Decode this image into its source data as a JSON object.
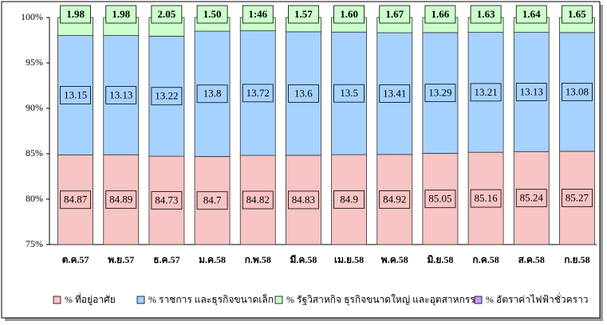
{
  "chart_data": {
    "type": "stacked_bar",
    "categories": [
      "ต.ค.57",
      "พ.ย.57",
      "ธ.ค.57",
      "ม.ค.58",
      "ก.พ.58",
      "มี.ค.58",
      "เม.ย.58",
      "พ.ค.58",
      "มิ.ย.58",
      "ก.ค.58",
      "ส.ค.58",
      "ก.ย.58"
    ],
    "series": [
      {
        "name": "% ที่อยู่อาศัย",
        "color": "#f8c4c4",
        "values": [
          84.87,
          84.89,
          84.73,
          84.7,
          84.82,
          84.83,
          84.9,
          84.92,
          85.05,
          85.16,
          85.24,
          85.27
        ]
      },
      {
        "name": "% ราชการ และธุรกิจขนาดเล็ก",
        "color": "#a6d2ff",
        "values": [
          13.15,
          13.13,
          13.22,
          13.8,
          13.72,
          13.6,
          13.5,
          13.41,
          13.29,
          13.21,
          13.13,
          13.08
        ]
      },
      {
        "name": "% รัฐวิสาหกิจ ธุรกิจขนาดใหญ่ และอุตสาหกรรม",
        "color": "#ccffcc",
        "values": [
          1.98,
          1.98,
          2.05,
          1.5,
          1.46,
          1.57,
          1.6,
          1.67,
          1.66,
          1.63,
          1.64,
          1.65
        ],
        "value_labels": [
          "1.98",
          "1.98",
          "2.05",
          "1.50",
          "1:46",
          "1.57",
          "1.60",
          "1.67",
          "1.66",
          "1.63",
          "1.64",
          "1.65"
        ]
      },
      {
        "name": "% อัตราค่าไฟฟ้าชั่วคราว",
        "color": "#cc99ff",
        "values": [
          null,
          null,
          null,
          null,
          null,
          null,
          null,
          null,
          null,
          null,
          null,
          null
        ]
      }
    ],
    "ylim": [
      75,
      100
    ],
    "yticks": [
      {
        "value": 75,
        "label": "75%"
      },
      {
        "value": 80,
        "label": "80%"
      },
      {
        "value": 85,
        "label": "85%"
      },
      {
        "value": 90,
        "label": "90%"
      },
      {
        "value": 95,
        "label": "95%"
      },
      {
        "value": 100,
        "label": "100%"
      }
    ],
    "legend": "bottom"
  }
}
